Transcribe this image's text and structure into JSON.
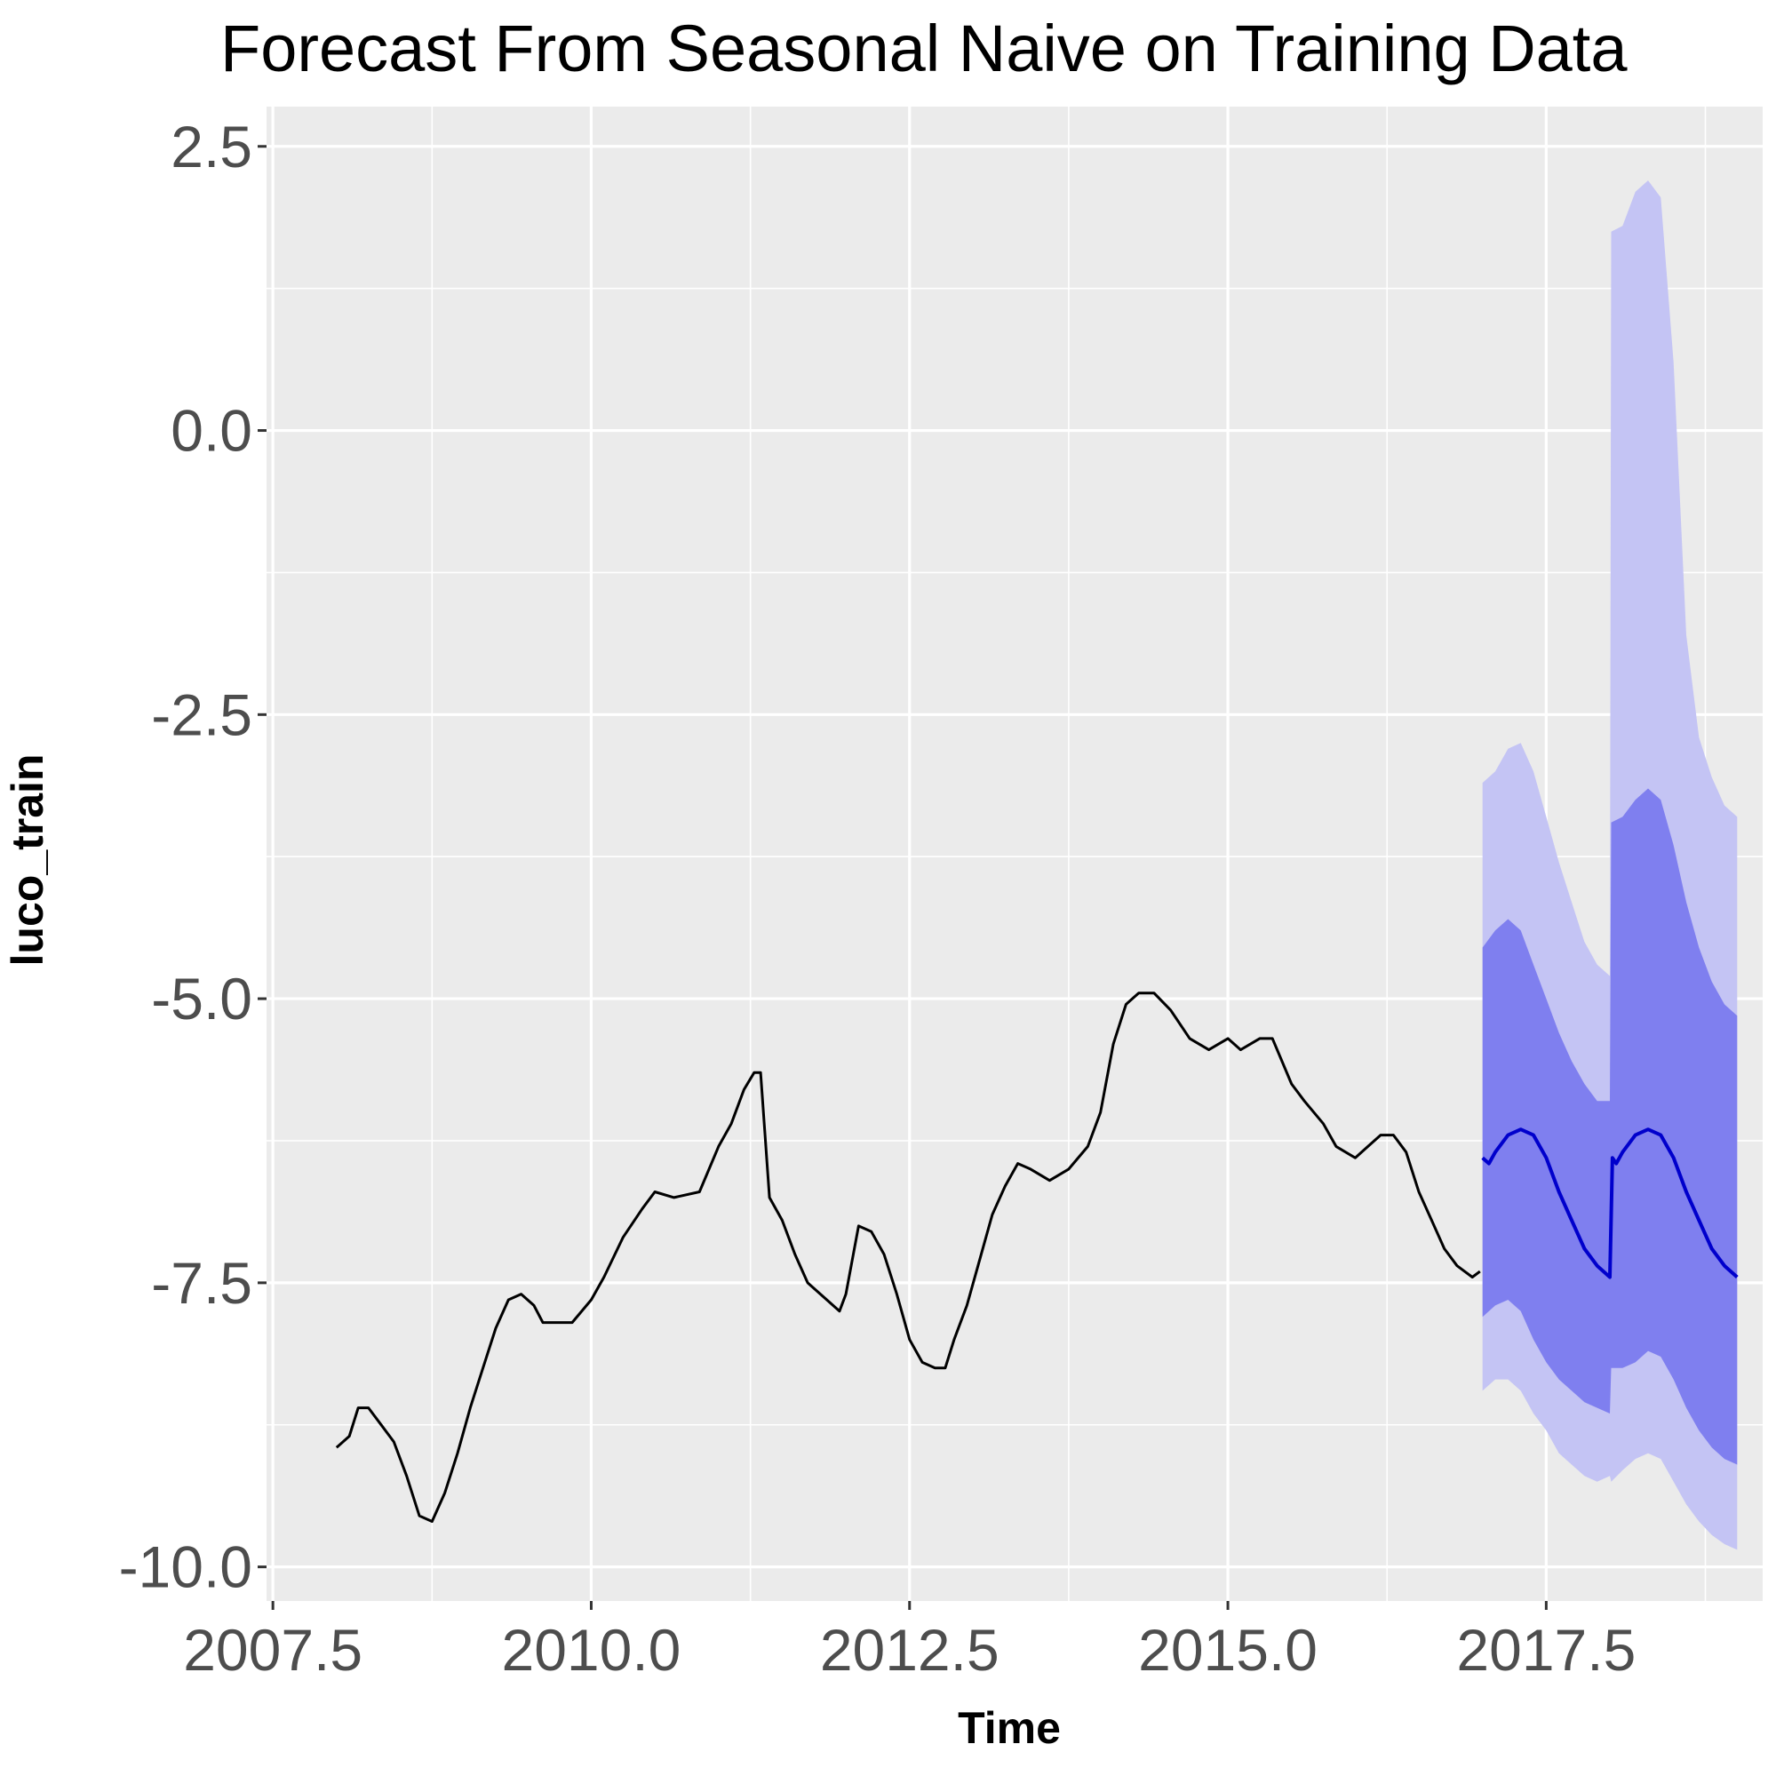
{
  "chart_data": {
    "type": "line",
    "title": "Forecast From Seasonal Naive on Training Data",
    "xlabel": "Time",
    "ylabel": "luco_train",
    "xlim": [
      2007.45,
      2019.2
    ],
    "ylim": [
      -10.3,
      2.85
    ],
    "x_ticks": [
      2007.5,
      2010.0,
      2012.5,
      2015.0,
      2017.5
    ],
    "x_tick_labels": [
      "2007.5",
      "2010.0",
      "2012.5",
      "2015.0",
      "2017.5"
    ],
    "y_ticks": [
      2.5,
      0.0,
      -2.5,
      -5.0,
      -7.5,
      -10.0
    ],
    "y_tick_labels": [
      "2.5",
      "0.0",
      "-2.5",
      "-5.0",
      "-7.5",
      "-10.0"
    ],
    "grid": true,
    "colors": {
      "panel": "#ebebeb",
      "grid": "#ffffff",
      "history": "#000000",
      "forecast": "#0000cc",
      "band80": "#7f7fef",
      "band95": "#c4c4f4"
    },
    "series": [
      {
        "x": [
          2008.0,
          2008.1,
          2008.17,
          2008.25,
          2008.35,
          2008.45,
          2008.55,
          2008.65,
          2008.75,
          2008.85,
          2008.95,
          2009.05,
          2009.15,
          2009.25,
          2009.35,
          2009.45,
          2009.55,
          2009.62,
          2009.72,
          2009.85,
          2010.0,
          2010.1,
          2010.25,
          2010.4,
          2010.5,
          2010.65,
          2010.85,
          2011.0,
          2011.1,
          2011.2,
          2011.28,
          2011.33,
          2011.4,
          2011.5,
          2011.6,
          2011.7,
          2011.85,
          2011.95,
          2012.0,
          2012.1,
          2012.2,
          2012.3,
          2012.4,
          2012.5,
          2012.6,
          2012.7,
          2012.78,
          2012.85,
          2012.95,
          2013.05,
          2013.15,
          2013.25,
          2013.35,
          2013.45,
          2013.6,
          2013.75,
          2013.9,
          2014.0,
          2014.1,
          2014.2,
          2014.3,
          2014.42,
          2014.55,
          2014.7,
          2014.85,
          2015.0,
          2015.1,
          2015.25,
          2015.35,
          2015.5,
          2015.6,
          2015.75,
          2015.85,
          2016.0,
          2016.1,
          2016.2,
          2016.3,
          2016.4,
          2016.5,
          2016.6,
          2016.7,
          2016.8,
          2016.92,
          2016.98
        ],
        "y": [
          -8.95,
          -8.85,
          -8.6,
          -8.6,
          -8.75,
          -8.9,
          -9.2,
          -9.55,
          -9.6,
          -9.35,
          -9.0,
          -8.6,
          -8.25,
          -7.9,
          -7.65,
          -7.6,
          -7.7,
          -7.85,
          -7.85,
          -7.85,
          -7.65,
          -7.45,
          -7.1,
          -6.85,
          -6.7,
          -6.75,
          -6.7,
          -6.3,
          -6.1,
          -5.8,
          -5.65,
          -5.65,
          -6.75,
          -6.95,
          -7.25,
          -7.5,
          -7.65,
          -7.75,
          -7.6,
          -7.0,
          -7.05,
          -7.25,
          -7.6,
          -8.0,
          -8.2,
          -8.25,
          -8.25,
          -8.0,
          -7.7,
          -7.3,
          -6.9,
          -6.65,
          -6.45,
          -6.5,
          -6.6,
          -6.5,
          -6.3,
          -6.0,
          -5.4,
          -5.05,
          -4.95,
          -4.95,
          -5.1,
          -5.35,
          -5.45,
          -5.35,
          -5.45,
          -5.35,
          -5.35,
          -5.75,
          -5.9,
          -6.1,
          -6.3,
          -6.4,
          -6.3,
          -6.2,
          -6.2,
          -6.35,
          -6.7,
          -6.95,
          -7.2,
          -7.35,
          -7.45,
          -7.4
        ]
      },
      {
        "x": [
          2017.0,
          2017.05,
          2017.1,
          2017.2,
          2017.3,
          2017.4,
          2017.5,
          2017.6,
          2017.7,
          2017.8,
          2017.9,
          2018.0,
          2018.02,
          2018.05,
          2018.1,
          2018.2,
          2018.3,
          2018.4,
          2018.5,
          2018.6,
          2018.7,
          2018.8,
          2018.9,
          2019.0
        ],
        "y": [
          -6.4,
          -6.45,
          -6.35,
          -6.2,
          -6.15,
          -6.2,
          -6.4,
          -6.7,
          -6.95,
          -7.2,
          -7.35,
          -7.45,
          -6.4,
          -6.45,
          -6.35,
          -6.2,
          -6.15,
          -6.2,
          -6.4,
          -6.7,
          -6.95,
          -7.2,
          -7.35,
          -7.45
        ]
      }
    ],
    "intervals": {
      "x": [
        2017.0,
        2017.1,
        2017.2,
        2017.3,
        2017.4,
        2017.5,
        2017.6,
        2017.7,
        2017.8,
        2017.9,
        2018.0,
        2018.01,
        2018.1,
        2018.2,
        2018.3,
        2018.4,
        2018.5,
        2018.6,
        2018.7,
        2018.8,
        2018.9,
        2019.0
      ],
      "lo95": [
        -8.45,
        -8.35,
        -8.35,
        -8.45,
        -8.65,
        -8.8,
        -9.0,
        -9.1,
        -9.2,
        -9.25,
        -9.2,
        -9.25,
        -9.15,
        -9.05,
        -9.0,
        -9.05,
        -9.25,
        -9.45,
        -9.6,
        -9.72,
        -9.8,
        -9.85
      ],
      "lo80": [
        -7.8,
        -7.7,
        -7.65,
        -7.75,
        -8.0,
        -8.2,
        -8.35,
        -8.45,
        -8.55,
        -8.6,
        -8.65,
        -8.25,
        -8.25,
        -8.2,
        -8.1,
        -8.15,
        -8.35,
        -8.6,
        -8.8,
        -8.95,
        -9.05,
        -9.1
      ],
      "hi80": [
        -4.55,
        -4.4,
        -4.3,
        -4.4,
        -4.7,
        -5.0,
        -5.3,
        -5.55,
        -5.75,
        -5.9,
        -5.9,
        -3.45,
        -3.4,
        -3.25,
        -3.15,
        -3.25,
        -3.65,
        -4.15,
        -4.55,
        -4.85,
        -5.05,
        -5.15
      ],
      "hi95": [
        -3.1,
        -3.0,
        -2.8,
        -2.75,
        -3.0,
        -3.4,
        -3.8,
        -4.15,
        -4.5,
        -4.7,
        -4.8,
        1.75,
        1.8,
        2.1,
        2.2,
        2.05,
        0.6,
        -1.8,
        -2.7,
        -3.05,
        -3.3,
        -3.4
      ]
    }
  }
}
